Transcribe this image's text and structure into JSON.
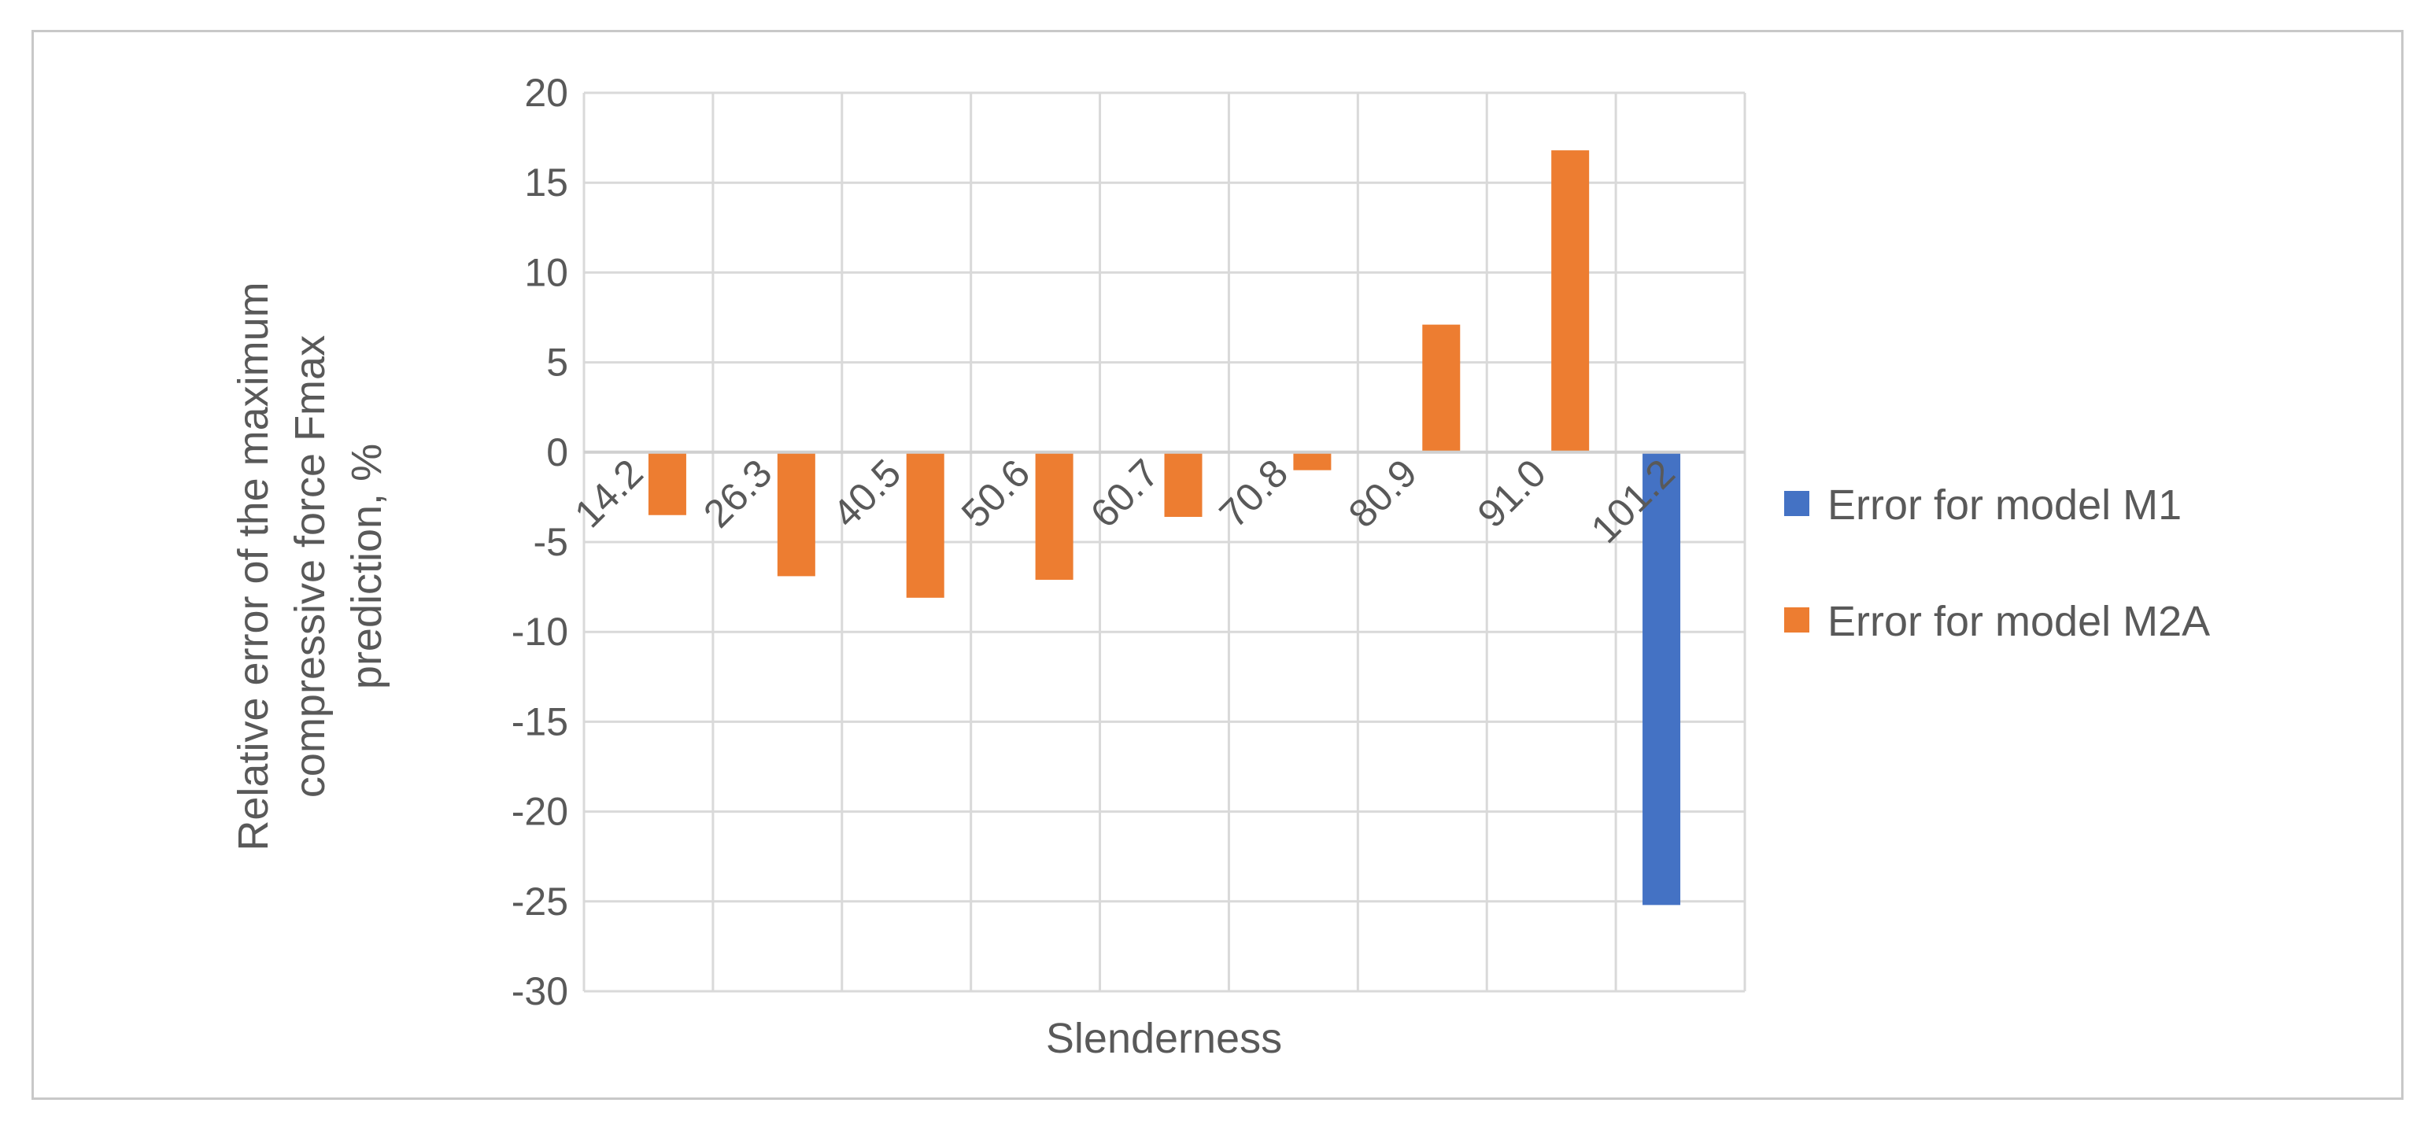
{
  "chart_data": {
    "type": "bar",
    "categories": [
      "14.2",
      "26.3",
      "40.5",
      "50.6",
      "60.7",
      "70.8",
      "80.9",
      "91.0",
      "101.2"
    ],
    "series": [
      {
        "name": "Error for model M1",
        "color": "#4472C4",
        "values": [
          null,
          null,
          null,
          null,
          null,
          null,
          null,
          null,
          -25.2
        ]
      },
      {
        "name": "Error for model M2A",
        "color": "#ED7D31",
        "values": [
          -3.5,
          -6.9,
          -8.1,
          -7.1,
          -3.6,
          -1.0,
          7.1,
          16.8,
          null
        ]
      }
    ],
    "y_ticks": [
      "20",
      "15",
      "10",
      "5",
      "0",
      "-5",
      "-10",
      "-15",
      "-20",
      "-25",
      "-30"
    ],
    "ylim": [
      -30,
      20
    ],
    "xlabel": "Slenderness",
    "ylabel_lines": [
      "Relative error of the maximum",
      "compressive force Fmax",
      "prediction, %"
    ],
    "grid": true,
    "legend_position": "right"
  }
}
